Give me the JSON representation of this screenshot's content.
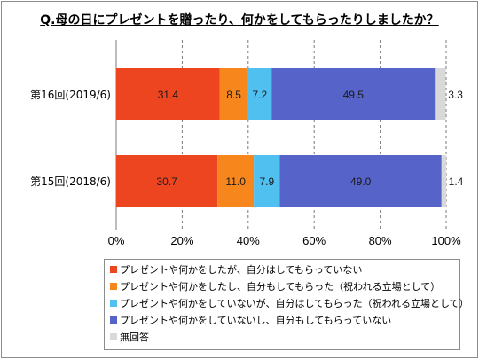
{
  "chart_data": {
    "type": "bar",
    "orientation": "horizontal",
    "stacked": true,
    "title": "Q.母の日にプレゼントを贈ったり、何かをしてもらったりしましたか？",
    "categories": [
      "第16回(2019/6)",
      "第15回(2018/6)"
    ],
    "series": [
      {
        "name": "プレゼントや何かをしたが、自分はしてもらっていない",
        "color": "#ee4521",
        "values": [
          31.4,
          30.7
        ],
        "labels": [
          "31.4",
          "30.7"
        ]
      },
      {
        "name": "プレゼントや何かをしたし、自分もしてもらった（祝われる立場として）",
        "color": "#f7861d",
        "values": [
          8.5,
          11.0
        ],
        "labels": [
          "8.5",
          "11.0"
        ]
      },
      {
        "name": "プレゼントや何かをしていないが、自分はしてもらった（祝われる立場として）",
        "color": "#4fc0f0",
        "values": [
          7.2,
          7.9
        ],
        "labels": [
          "7.2",
          "7.9"
        ]
      },
      {
        "name": "プレゼントや何かをしていないし、自分もしてもらっていない",
        "color": "#5663c8",
        "values": [
          49.5,
          49.0
        ],
        "labels": [
          "49.5",
          "49.0"
        ]
      },
      {
        "name": "無回答",
        "color": "#d9d9d9",
        "values": [
          3.3,
          1.4
        ],
        "labels": [
          "3.3",
          "1.4"
        ]
      }
    ],
    "xlim": [
      0,
      100
    ],
    "x_ticks": [
      "0%",
      "20%",
      "40%",
      "60%",
      "80%",
      "100%"
    ],
    "grid": "vertical dashed",
    "legend_position": "bottom"
  }
}
